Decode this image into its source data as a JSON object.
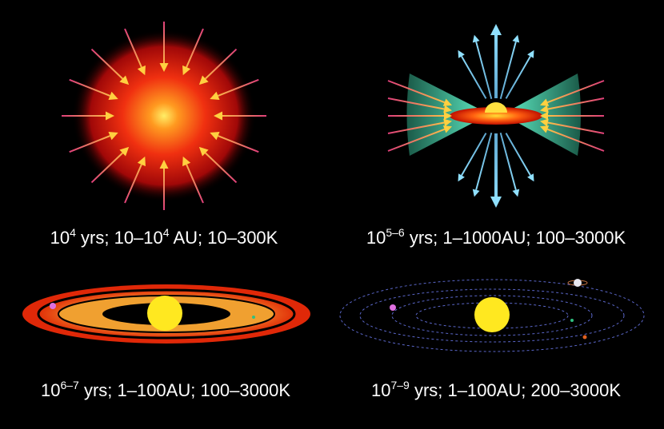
{
  "panels": [
    {
      "caption": [
        "10",
        "4",
        " yrs; 10–10",
        "4",
        " AU; 10–300K"
      ]
    },
    {
      "caption": [
        "10",
        "5–6",
        " yrs; 1–1000AU; 100–3000K"
      ]
    },
    {
      "caption": [
        "10",
        "6–7",
        " yrs; 1–100AU; 100–3000K"
      ]
    },
    {
      "caption": [
        "10",
        "7–9",
        " yrs; 1–100AU; 200–3000K"
      ]
    }
  ]
}
